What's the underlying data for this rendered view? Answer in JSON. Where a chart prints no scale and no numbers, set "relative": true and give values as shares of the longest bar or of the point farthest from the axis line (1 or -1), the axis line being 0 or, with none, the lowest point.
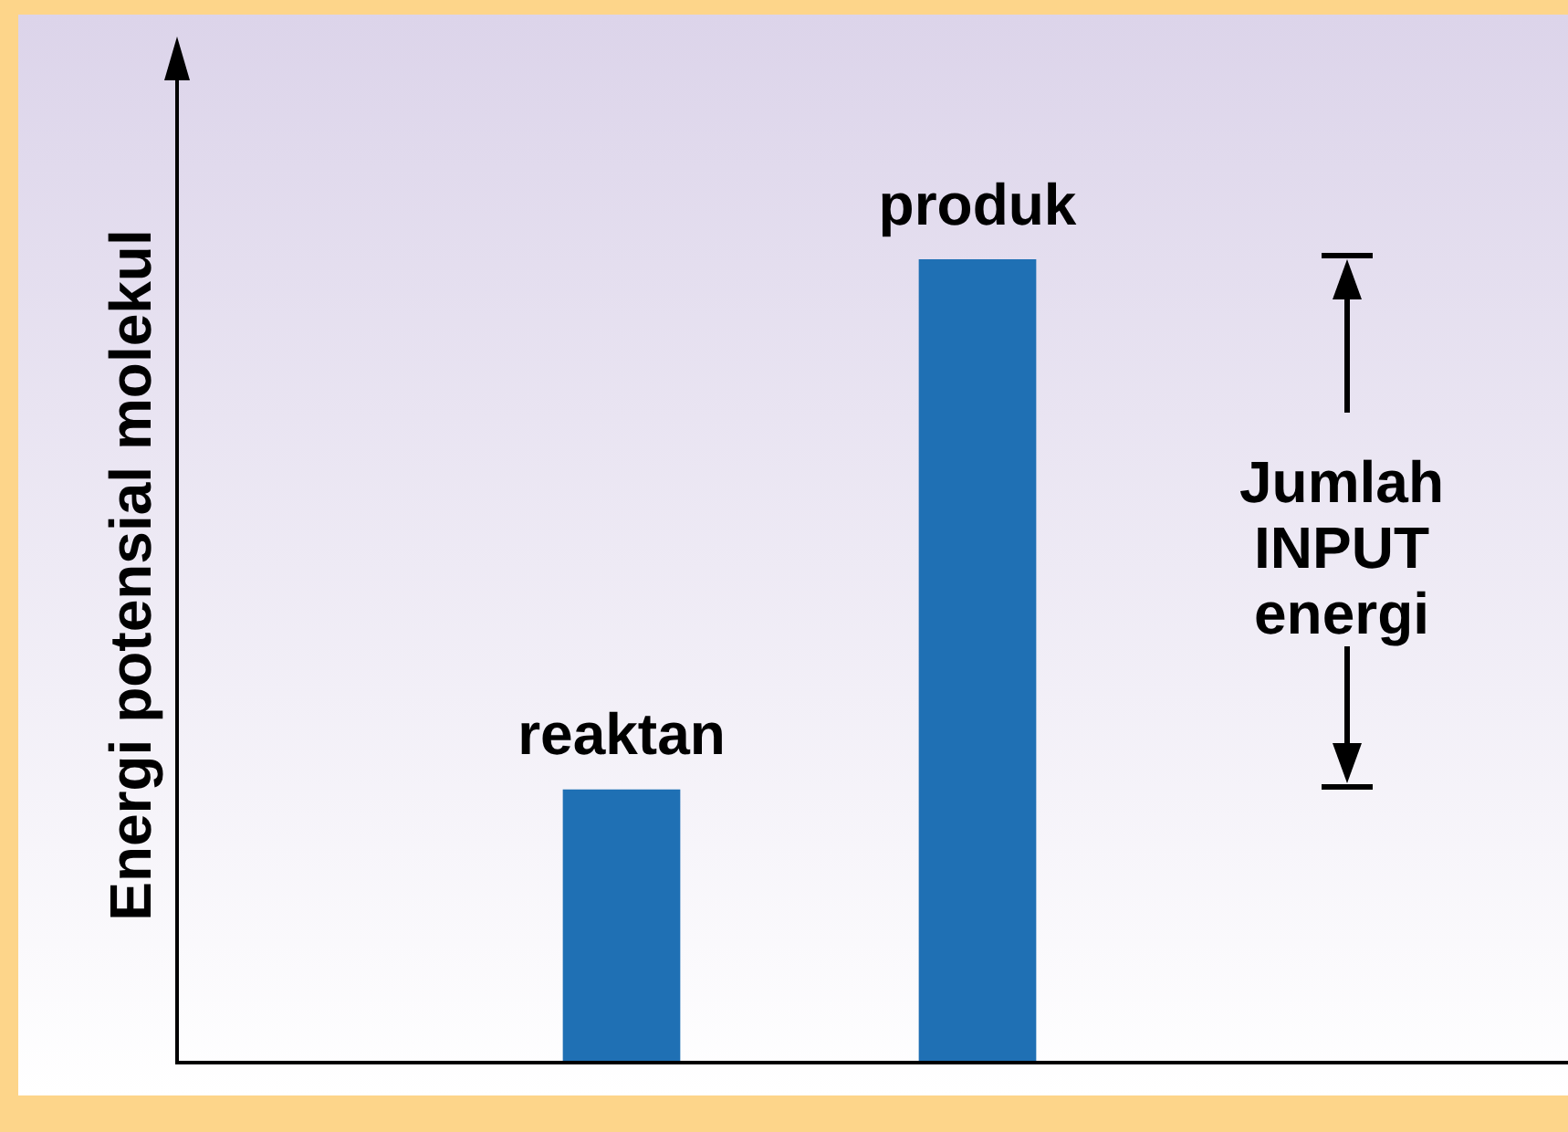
{
  "chart_data": {
    "type": "bar",
    "relative": true,
    "ylabel": "Energi potensial molekul",
    "categories": [
      "reaktan",
      "produk"
    ],
    "values": [
      0.34,
      1
    ],
    "color": "#1f70b4",
    "grid": false,
    "legend": false,
    "annotations": [
      "Jumlah INPUT energi"
    ]
  }
}
